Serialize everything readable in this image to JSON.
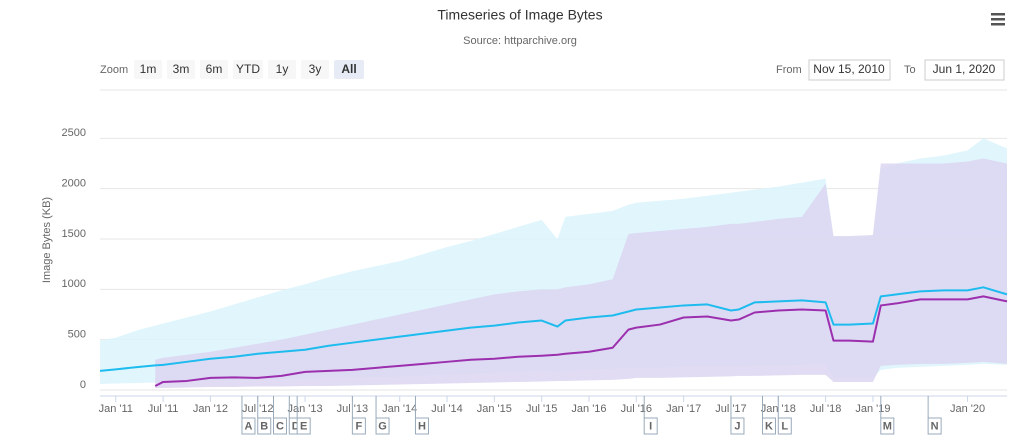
{
  "chart_data": {
    "type": "timeseries",
    "title": "Timeseries of Image Bytes",
    "subtitle": "Source: httparchive.org",
    "y_axis_label": "Image Bytes (KB)",
    "range_selector": {
      "zoom_label": "Zoom",
      "buttons": [
        "1m",
        "3m",
        "6m",
        "YTD",
        "1y",
        "3y",
        "All"
      ],
      "selected": "All",
      "from_label": "From",
      "from": "Nov 15, 2010",
      "to_label": "To",
      "to": "Jun 1, 2020"
    },
    "x": [
      "2010-11",
      "2011-01",
      "2011-04",
      "2011-06",
      "2011-07",
      "2011-10",
      "2012-01",
      "2012-04",
      "2012-07",
      "2012-10",
      "2013-01",
      "2013-04",
      "2013-07",
      "2013-10",
      "2014-01",
      "2014-04",
      "2014-07",
      "2014-10",
      "2015-01",
      "2015-04",
      "2015-07",
      "2015-09",
      "2015-10",
      "2016-01",
      "2016-04",
      "2016-06",
      "2016-07",
      "2016-10",
      "2017-01",
      "2017-04",
      "2017-07",
      "2017-08",
      "2017-10",
      "2018-01",
      "2018-04",
      "2018-07",
      "2018-08",
      "2018-10",
      "2019-01",
      "2019-02",
      "2019-04",
      "2019-07",
      "2019-10",
      "2020-01",
      "2020-03",
      "2020-06"
    ],
    "xlim": [
      "2010-11",
      "2020-06"
    ],
    "xticks": [
      {
        "value": "2011-01",
        "label": "Jan '11"
      },
      {
        "value": "2011-07",
        "label": "Jul '11"
      },
      {
        "value": "2012-01",
        "label": "Jan '12"
      },
      {
        "value": "2012-07",
        "label": "Jul '12"
      },
      {
        "value": "2013-01",
        "label": "Jan '13"
      },
      {
        "value": "2013-07",
        "label": "Jul '13"
      },
      {
        "value": "2014-01",
        "label": "Jan '14"
      },
      {
        "value": "2014-07",
        "label": "Jul '14"
      },
      {
        "value": "2015-01",
        "label": "Jan '15"
      },
      {
        "value": "2015-07",
        "label": "Jul '15"
      },
      {
        "value": "2016-01",
        "label": "Jan '16"
      },
      {
        "value": "2016-07",
        "label": "Jul '16"
      },
      {
        "value": "2017-01",
        "label": "Jan '17"
      },
      {
        "value": "2017-07",
        "label": "Jul '17"
      },
      {
        "value": "2018-01",
        "label": "Jan '18"
      },
      {
        "value": "2018-07",
        "label": "Jul '18"
      },
      {
        "value": "2019-01",
        "label": "Jan '19"
      },
      {
        "value": "2020-01",
        "label": "Jan '20"
      }
    ],
    "ylim": [
      0,
      3000
    ],
    "yticks": [
      0,
      500,
      1000,
      1500,
      2000,
      2500
    ],
    "grid": true,
    "series": [
      {
        "kind": "range",
        "color": "#dbf5fc",
        "low": [
          60,
          65,
          70,
          75,
          80,
          85,
          90,
          95,
          100,
          105,
          110,
          115,
          120,
          125,
          130,
          140,
          150,
          160,
          170,
          180,
          190,
          180,
          190,
          200,
          210,
          220,
          220,
          220,
          230,
          230,
          230,
          230,
          240,
          240,
          250,
          250,
          120,
          120,
          120,
          200,
          220,
          230,
          240,
          250,
          260,
          250
        ],
        "high": [
          490,
          520,
          600,
          640,
          660,
          720,
          780,
          850,
          920,
          990,
          1050,
          1120,
          1180,
          1230,
          1280,
          1350,
          1420,
          1480,
          1550,
          1620,
          1690,
          1500,
          1720,
          1750,
          1780,
          1840,
          1860,
          1880,
          1900,
          1930,
          1960,
          1970,
          1990,
          2020,
          2060,
          2100,
          1520,
          1520,
          1530,
          2200,
          2250,
          2300,
          2330,
          2380,
          2500,
          2400
        ]
      },
      {
        "kind": "range",
        "color": "#dcd6f1",
        "low": [
          null,
          null,
          null,
          20,
          20,
          25,
          30,
          30,
          35,
          35,
          40,
          40,
          45,
          50,
          55,
          60,
          65,
          70,
          75,
          80,
          85,
          90,
          90,
          95,
          100,
          110,
          120,
          120,
          125,
          130,
          135,
          140,
          140,
          145,
          150,
          150,
          80,
          80,
          80,
          240,
          250,
          260,
          260,
          270,
          280,
          260
        ],
        "high": [
          null,
          null,
          null,
          300,
          320,
          350,
          380,
          420,
          460,
          500,
          550,
          600,
          650,
          700,
          750,
          800,
          850,
          900,
          950,
          980,
          1000,
          1000,
          1020,
          1050,
          1100,
          1550,
          1560,
          1580,
          1600,
          1620,
          1650,
          1650,
          1670,
          1700,
          1720,
          2050,
          1530,
          1530,
          1540,
          2250,
          2250,
          2250,
          2250,
          2270,
          2300,
          2250
        ]
      },
      {
        "kind": "line",
        "color": "#1ebcee",
        "values": [
          190,
          205,
          230,
          245,
          250,
          280,
          310,
          330,
          360,
          380,
          400,
          440,
          470,
          500,
          530,
          560,
          590,
          620,
          640,
          670,
          690,
          630,
          690,
          720,
          740,
          780,
          800,
          820,
          840,
          850,
          790,
          800,
          870,
          880,
          890,
          870,
          650,
          650,
          660,
          930,
          950,
          980,
          990,
          990,
          1020,
          950
        ]
      },
      {
        "kind": "line",
        "color": "#9b2fae",
        "values": [
          null,
          null,
          null,
          40,
          80,
          90,
          120,
          125,
          120,
          140,
          180,
          190,
          200,
          220,
          240,
          260,
          280,
          300,
          310,
          330,
          340,
          350,
          360,
          380,
          420,
          600,
          620,
          650,
          720,
          730,
          690,
          700,
          770,
          790,
          800,
          790,
          490,
          490,
          480,
          840,
          860,
          900,
          900,
          900,
          930,
          880
        ]
      }
    ],
    "flags": [
      {
        "label": "A",
        "x": "2012-05"
      },
      {
        "label": "B",
        "x": "2012-07"
      },
      {
        "label": "C",
        "x": "2012-09"
      },
      {
        "label": "D",
        "x": "2012-11"
      },
      {
        "label": "E",
        "x": "2012-12"
      },
      {
        "label": "F",
        "x": "2013-07"
      },
      {
        "label": "G",
        "x": "2013-10"
      },
      {
        "label": "H",
        "x": "2014-03"
      },
      {
        "label": "I",
        "x": "2016-08"
      },
      {
        "label": "J",
        "x": "2017-07"
      },
      {
        "label": "K",
        "x": "2017-11"
      },
      {
        "label": "L",
        "x": "2018-01"
      },
      {
        "label": "M",
        "x": "2019-02"
      },
      {
        "label": "N",
        "x": "2019-08"
      }
    ]
  }
}
